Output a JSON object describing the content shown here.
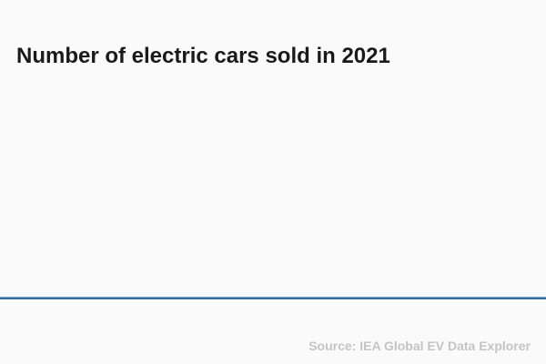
{
  "chart": {
    "title": "Number of electric cars sold in 2021",
    "source_credit": "Source: IEA Global EV Data Explorer"
  },
  "chart_data": {
    "type": "bar",
    "categories": [],
    "values": [],
    "series": [],
    "title": "Number of electric cars sold in 2021",
    "xlabel": "",
    "ylabel": "",
    "annotations": [
      "Source: IEA Global EV Data Explorer"
    ],
    "grid": false,
    "legend": false,
    "note": "No data marks, tick labels, gridlines or legend are rendered in the image; only the chart title, a full-width blue x-axis baseline, and the bottom-right source credit are visible."
  },
  "colors": {
    "background": "#fafafa",
    "title_text": "#1a1a1a",
    "axis_line": "#336e9e",
    "source_text": "#c4c4c4"
  }
}
